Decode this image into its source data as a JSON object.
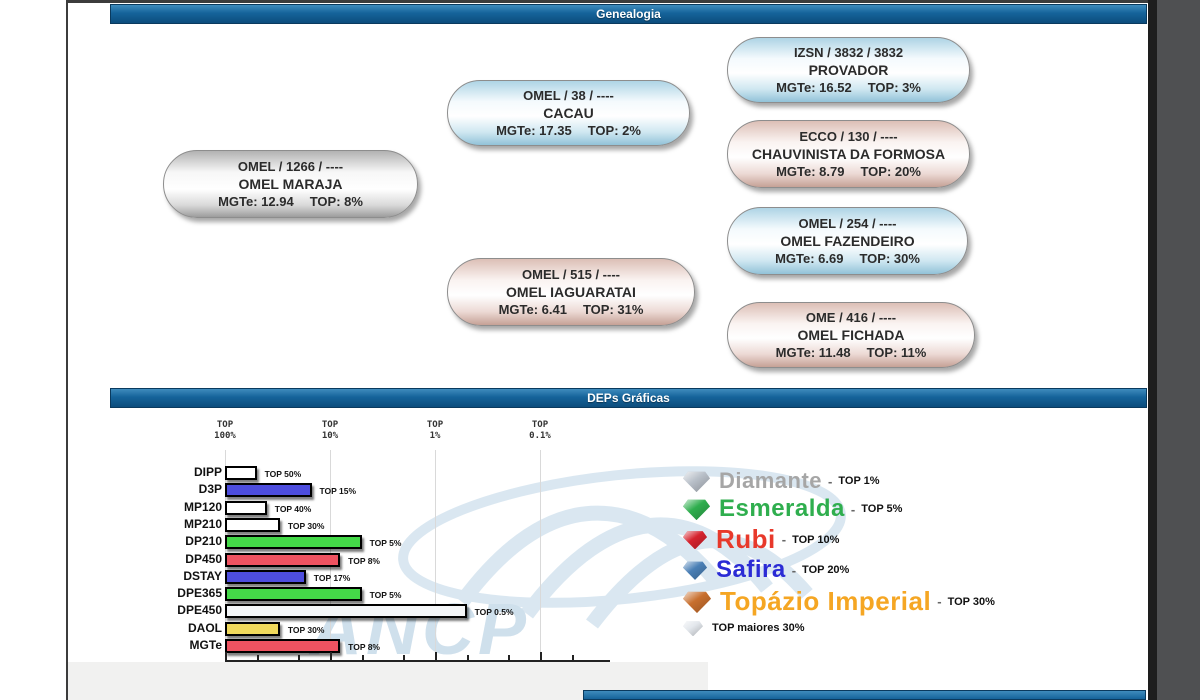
{
  "sections": {
    "genealogia": {
      "title": "Genealogia",
      "nodes": [
        {
          "id": "animal",
          "registry": "OMEL / 1266 / ----",
          "name": "OMEL MARAJA",
          "mgte": "MGTe: 12.94",
          "top": "TOP: 8%",
          "variant": "gray"
        },
        {
          "id": "sire",
          "registry": "OMEL / 38 / ----",
          "name": "CACAU",
          "mgte": "MGTe: 17.35",
          "top": "TOP: 2%",
          "variant": "blue"
        },
        {
          "id": "dam",
          "registry": "OMEL / 515 / ----",
          "name": "OMEL IAGUARATAI",
          "mgte": "MGTe: 6.41",
          "top": "TOP: 31%",
          "variant": "pink"
        },
        {
          "id": "sire-sire",
          "registry": "IZSN / 3832 / 3832",
          "name": "PROVADOR",
          "mgte": "MGTe: 16.52",
          "top": "TOP: 3%",
          "variant": "blue"
        },
        {
          "id": "sire-dam",
          "registry": "ECCO / 130 / ----",
          "name": "CHAUVINISTA DA FORMOSA",
          "mgte": "MGTe: 8.79",
          "top": "TOP: 20%",
          "variant": "pink"
        },
        {
          "id": "dam-sire",
          "registry": "OMEL / 254 / ----",
          "name": "OMEL FAZENDEIRO",
          "mgte": "MGTe: 6.69",
          "top": "TOP: 30%",
          "variant": "blue"
        },
        {
          "id": "dam-dam",
          "registry": "OME / 416 / ----",
          "name": "OMEL FICHADA",
          "mgte": "MGTe: 11.48",
          "top": "TOP: 11%",
          "variant": "pink"
        }
      ]
    },
    "deps": {
      "title": "DEPs Gráficas",
      "chart_data": {
        "type": "bar",
        "orientation": "horizontal",
        "x_scale": "log-percentile",
        "axis_ticks": [
          {
            "line1": "TOP",
            "line2": "100%"
          },
          {
            "line1": "TOP",
            "line2": "10%"
          },
          {
            "line1": "TOP",
            "line2": "1%"
          },
          {
            "line1": "TOP",
            "line2": "0.1%"
          }
        ],
        "categories": [
          "DIPP",
          "D3P",
          "MP120",
          "MP210",
          "DP210",
          "DP450",
          "DSTAY",
          "DPE365",
          "DPE450",
          "DAOL",
          "MGTe"
        ],
        "values_top_percent": [
          50,
          15,
          40,
          30,
          5,
          8,
          17,
          5,
          0.5,
          30,
          8
        ],
        "bar_labels": [
          "TOP 50%",
          "TOP 15%",
          "TOP 40%",
          "TOP 30%",
          "TOP 5%",
          "TOP 8%",
          "TOP 17%",
          "TOP 5%",
          "TOP 0.5%",
          "TOP 30%",
          "TOP 8%"
        ],
        "bar_colors": [
          "#ffffff",
          "#4d4ddd",
          "#ffffff",
          "#ffffff",
          "#44d948",
          "#ef5361",
          "#4d4ddd",
          "#44d948",
          "#f4f6f8",
          "#f0d95c",
          "#ef5361"
        ],
        "watermark": "ANCP"
      },
      "legend": {
        "entries": [
          {
            "name": "Diamante",
            "sep": "-",
            "top": "TOP 1%",
            "name_color": "#a6a6a6",
            "gem_color": "#b9c0c9"
          },
          {
            "name": "Esmeralda",
            "sep": "-",
            "top": "TOP 5%",
            "name_color": "#2fae4e",
            "gem_color": "#2fae4e"
          },
          {
            "name": "Rubi",
            "sep": "-",
            "top": "TOP 10%",
            "name_color": "#e8392b",
            "gem_color": "#d5232e"
          },
          {
            "name": "Safira",
            "sep": "-",
            "top": "TOP 20%",
            "name_color": "#2b2bd5",
            "gem_color": "#4a7fb5"
          },
          {
            "name": "Topázio Imperial",
            "sep": "-",
            "top": "TOP 30%",
            "name_color": "#f5a623",
            "gem_color": "#c86f2e"
          },
          {
            "name": "",
            "sep": "",
            "top": "TOP maiores 30%",
            "name_color": "#333333",
            "gem_color": "#e3e7ec"
          }
        ]
      }
    }
  }
}
